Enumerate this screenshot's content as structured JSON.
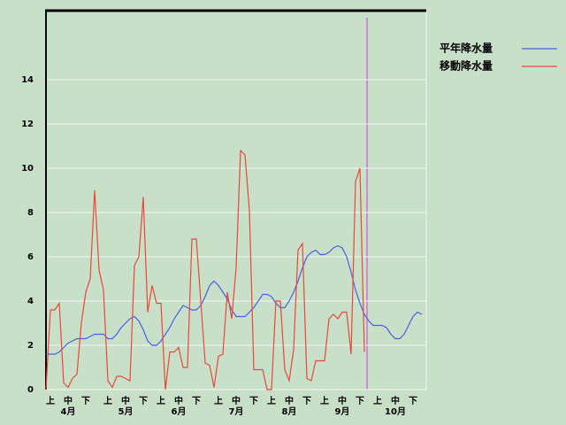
{
  "chart_data": {
    "type": "line",
    "categories": [
      null,
      "上",
      null,
      null,
      null,
      "中",
      null,
      null,
      null,
      "下",
      null,
      null,
      null,
      null,
      "上",
      null,
      null,
      null,
      "中",
      null,
      null,
      null,
      "下",
      null,
      null,
      null,
      "上",
      null,
      null,
      null,
      "中",
      null,
      null,
      null,
      "下",
      null,
      null,
      null,
      null,
      "上",
      null,
      null,
      null,
      "中",
      null,
      null,
      null,
      "下",
      null,
      null,
      null,
      "上",
      null,
      null,
      null,
      "中",
      null,
      null,
      null,
      "下",
      null,
      null,
      null,
      "上",
      null,
      null,
      null,
      "中",
      null,
      null,
      null,
      "下",
      null,
      null,
      null,
      "上",
      null,
      null,
      null,
      "中",
      null,
      null,
      null,
      "下",
      null,
      null
    ],
    "months": [
      null,
      null,
      null,
      null,
      null,
      "4月",
      null,
      null,
      null,
      null,
      null,
      null,
      null,
      null,
      null,
      null,
      null,
      null,
      "5月",
      null,
      null,
      null,
      null,
      null,
      null,
      null,
      null,
      null,
      null,
      null,
      "6月",
      null,
      null,
      null,
      null,
      null,
      null,
      null,
      null,
      null,
      null,
      null,
      null,
      "7月",
      null,
      null,
      null,
      null,
      null,
      null,
      null,
      null,
      null,
      null,
      null,
      "8月",
      null,
      null,
      null,
      null,
      null,
      null,
      null,
      null,
      null,
      null,
      null,
      "9月",
      null,
      null,
      null,
      null,
      null,
      null,
      null,
      null,
      null,
      null,
      null,
      "10月",
      null,
      null,
      null,
      null,
      null,
      null
    ],
    "series": [
      {
        "name": "平年降水量",
        "color": "#4a5ee8",
        "values": [
          1.6,
          1.6,
          1.6,
          1.7,
          1.9,
          2.1,
          2.2,
          2.3,
          2.3,
          2.3,
          2.4,
          2.5,
          2.5,
          2.5,
          2.3,
          2.3,
          2.5,
          2.8,
          3.0,
          3.2,
          3.3,
          3.1,
          2.7,
          2.2,
          2.0,
          2.0,
          2.2,
          2.5,
          2.8,
          3.2,
          3.5,
          3.8,
          3.7,
          3.6,
          3.6,
          3.8,
          4.2,
          4.7,
          4.9,
          4.7,
          4.4,
          4.1,
          3.6,
          3.3,
          3.3,
          3.3,
          3.5,
          3.7,
          4.0,
          4.3,
          4.3,
          4.2,
          3.9,
          3.7,
          3.7,
          4.0,
          4.4,
          4.9,
          5.5,
          6.0,
          6.2,
          6.3,
          6.1,
          6.1,
          6.2,
          6.4,
          6.5,
          6.4,
          6.0,
          5.3,
          4.5,
          3.9,
          3.4,
          3.1,
          2.9,
          2.9,
          2.9,
          2.8,
          2.5,
          2.3,
          2.3,
          2.5,
          2.9,
          3.3,
          3.5,
          3.4
        ]
      },
      {
        "name": "移動降水量",
        "color": "#e8483a",
        "values": [
          0,
          3.6,
          3.6,
          3.9,
          0.3,
          0.1,
          0.5,
          0.7,
          3.0,
          4.4,
          5.0,
          9.0,
          5.4,
          4.5,
          0.4,
          0.1,
          0.6,
          0.6,
          0.5,
          0.4,
          5.6,
          6.0,
          8.7,
          3.5,
          4.7,
          3.9,
          3.9,
          0,
          1.7,
          1.7,
          1.9,
          1.0,
          1.0,
          6.8,
          6.8,
          4.0,
          1.2,
          1.1,
          0.1,
          1.5,
          1.6,
          4.4,
          3.2,
          5.5,
          10.8,
          10.6,
          8.1,
          0.9,
          0.9,
          0.9,
          0,
          0,
          4.0,
          4.0,
          0.9,
          0.4,
          1.8,
          6.3,
          6.6,
          0.5,
          0.4,
          1.3,
          1.3,
          1.3,
          3.2,
          3.4,
          3.2,
          3.5,
          3.5,
          1.6,
          9.4,
          10.0,
          1.7,
          null,
          null,
          null,
          null,
          null,
          null,
          null,
          null,
          null,
          null,
          null,
          null,
          null
        ]
      }
    ],
    "ylim": [
      0,
      17.12
    ],
    "yticks": [
      0,
      2,
      4,
      6,
      8,
      10,
      12,
      14
    ],
    "grid": true,
    "legend": "top-right"
  }
}
